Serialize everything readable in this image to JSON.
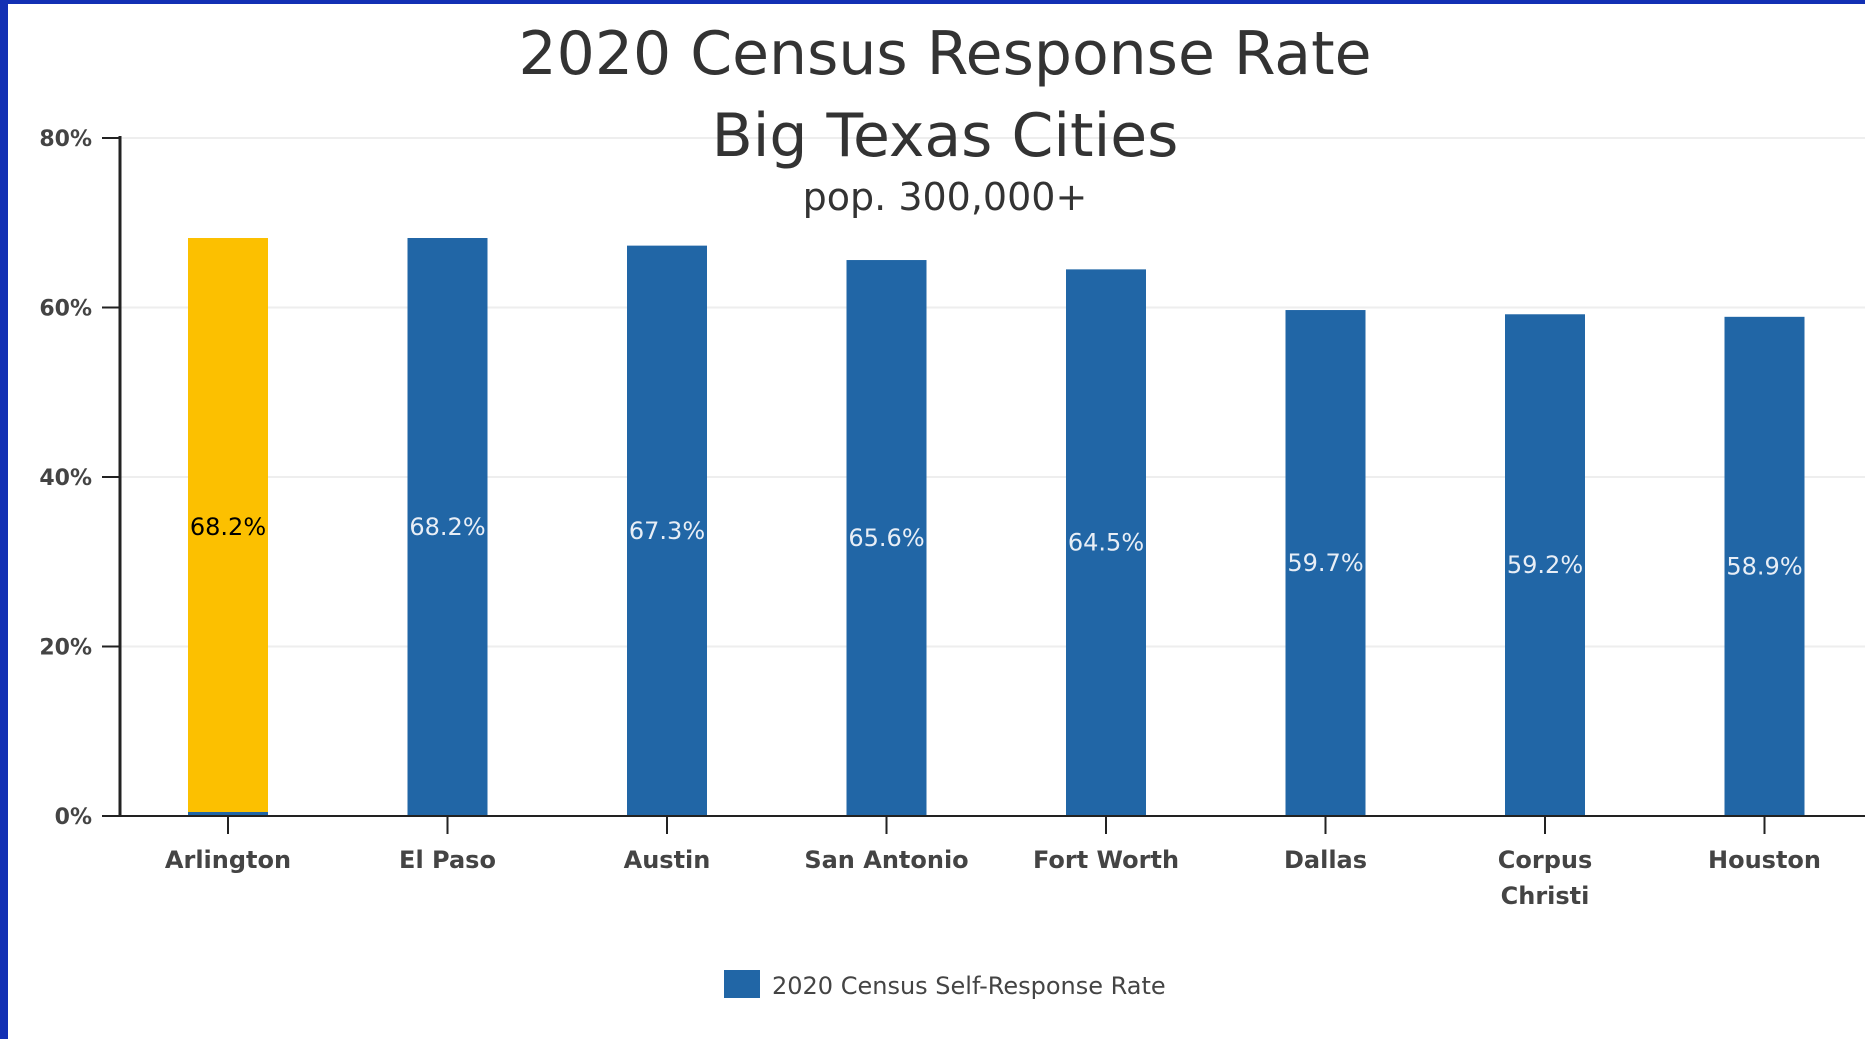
{
  "chart_data": {
    "type": "bar",
    "title": "2020 Census Response Rate",
    "title_line2": "Big Texas Cities",
    "subtitle": "pop. 300,000+",
    "categories": [
      "Arlington",
      "El Paso",
      "Austin",
      "San Antonio",
      "Fort Worth",
      "Dallas",
      "Corpus Christi",
      "Houston"
    ],
    "category_label_lines": [
      [
        "Arlington"
      ],
      [
        "El Paso"
      ],
      [
        "Austin"
      ],
      [
        "San Antonio"
      ],
      [
        "Fort Worth"
      ],
      [
        "Dallas"
      ],
      [
        "Corpus",
        "Christi"
      ],
      [
        "Houston"
      ]
    ],
    "series": [
      {
        "name": "2020 Census Self-Response Rate",
        "values": [
          68.2,
          68.2,
          67.3,
          65.6,
          64.5,
          59.7,
          59.2,
          58.9
        ],
        "labels": [
          "68.2%",
          "68.2%",
          "67.3%",
          "65.6%",
          "64.5%",
          "59.7%",
          "59.2%",
          "58.9%"
        ]
      }
    ],
    "highlight_index": 0,
    "ylim": [
      0,
      80
    ],
    "y_ticks": [
      0,
      20,
      40,
      60,
      80
    ],
    "y_tick_labels": [
      "0%",
      "20%",
      "40%",
      "60%",
      "80%"
    ],
    "grid": true,
    "legend_position": "bottom-center",
    "colors": {
      "bar": "#2166a6",
      "highlight": "#fcc000",
      "label_default": "#e8eef6",
      "label_highlight": "#000000",
      "frame": "#1230b4"
    }
  }
}
